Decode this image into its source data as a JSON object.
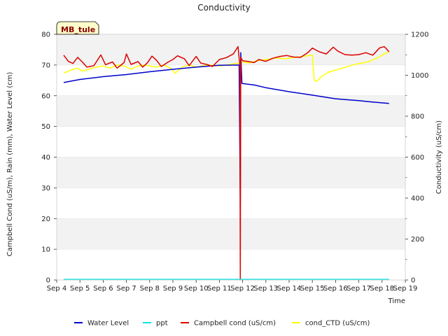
{
  "chart_data": {
    "type": "line",
    "title": "Conductivity",
    "station_label": "MB_tule",
    "xlabel": "Time",
    "ylabel_left": "Campbell Cond (uS/m), Rain (mm), Water Level (cm)",
    "ylabel_right": "Conductivity (uS/cm)",
    "x_ticks": [
      "Sep 4",
      "Sep 5",
      "Sep 6",
      "Sep 7",
      "Sep 8",
      "Sep 9",
      "Sep 10",
      "Sep 11",
      "Sep 12",
      "Sep 13",
      "Sep 14",
      "Sep 15",
      "Sep 16",
      "Sep 17",
      "Sep 18",
      "Sep 19"
    ],
    "xlim": [
      4,
      19
    ],
    "ylim_left": [
      0,
      80
    ],
    "ylim_right": [
      0,
      1200
    ],
    "y_ticks_left": [
      "0",
      "10",
      "20",
      "30",
      "40",
      "50",
      "60",
      "70",
      "80"
    ],
    "y_ticks_right": [
      "0",
      "200",
      "400",
      "600",
      "800",
      "1000",
      "1200"
    ],
    "grid": "horizontal bands",
    "legend_position": "bottom",
    "series": [
      {
        "name": "Water Level",
        "color": "#0000cc",
        "axis": "left",
        "points": [
          [
            4.3,
            64.3
          ],
          [
            5.0,
            65.3
          ],
          [
            6.0,
            66.2
          ],
          [
            7.0,
            66.9
          ],
          [
            8.0,
            67.8
          ],
          [
            9.0,
            68.6
          ],
          [
            10.0,
            69.3
          ],
          [
            11.0,
            69.9
          ],
          [
            11.85,
            70.0
          ],
          [
            11.9,
            25.0
          ],
          [
            11.92,
            74.0
          ],
          [
            11.97,
            64.0
          ],
          [
            12.5,
            63.5
          ],
          [
            13.0,
            62.6
          ],
          [
            14.0,
            61.3
          ],
          [
            15.0,
            60.2
          ],
          [
            16.0,
            59.0
          ],
          [
            17.0,
            58.4
          ],
          [
            17.5,
            58.0
          ],
          [
            18.3,
            57.5
          ]
        ]
      },
      {
        "name": "ppt",
        "color": "#00e5e5",
        "axis": "left",
        "points": [
          [
            4.3,
            0.2
          ],
          [
            18.3,
            0.2
          ]
        ]
      },
      {
        "name": "Campbell cond (uS/cm)",
        "color": "#dd0000",
        "axis": "left",
        "points": [
          [
            4.3,
            73.2
          ],
          [
            4.5,
            71.2
          ],
          [
            4.7,
            70.5
          ],
          [
            4.9,
            72.5
          ],
          [
            5.1,
            71.0
          ],
          [
            5.3,
            69.3
          ],
          [
            5.6,
            69.8
          ],
          [
            5.9,
            73.3
          ],
          [
            6.1,
            70.1
          ],
          [
            6.4,
            71.0
          ],
          [
            6.6,
            69.0
          ],
          [
            6.9,
            70.8
          ],
          [
            7.0,
            73.6
          ],
          [
            7.2,
            70.2
          ],
          [
            7.5,
            71.1
          ],
          [
            7.7,
            69.3
          ],
          [
            7.9,
            70.7
          ],
          [
            8.1,
            72.9
          ],
          [
            8.3,
            71.5
          ],
          [
            8.5,
            69.5
          ],
          [
            8.8,
            71.0
          ],
          [
            9.0,
            71.8
          ],
          [
            9.2,
            73.0
          ],
          [
            9.5,
            72.0
          ],
          [
            9.7,
            69.8
          ],
          [
            10.0,
            72.8
          ],
          [
            10.2,
            70.6
          ],
          [
            10.5,
            70.1
          ],
          [
            10.7,
            69.5
          ],
          [
            11.0,
            71.8
          ],
          [
            11.3,
            72.4
          ],
          [
            11.6,
            73.6
          ],
          [
            11.8,
            76.0
          ],
          [
            11.88,
            70.0
          ],
          [
            11.9,
            0.0
          ],
          [
            11.92,
            72.5
          ],
          [
            12.0,
            71.4
          ],
          [
            12.2,
            71.2
          ],
          [
            12.5,
            70.8
          ],
          [
            12.7,
            71.8
          ],
          [
            13.0,
            71.2
          ],
          [
            13.3,
            72.2
          ],
          [
            13.6,
            72.8
          ],
          [
            13.9,
            73.1
          ],
          [
            14.2,
            72.6
          ],
          [
            14.5,
            72.5
          ],
          [
            14.8,
            74.0
          ],
          [
            15.0,
            75.5
          ],
          [
            15.3,
            74.3
          ],
          [
            15.6,
            73.6
          ],
          [
            15.9,
            75.8
          ],
          [
            16.1,
            74.5
          ],
          [
            16.4,
            73.4
          ],
          [
            16.7,
            73.2
          ],
          [
            17.0,
            73.4
          ],
          [
            17.3,
            74.0
          ],
          [
            17.6,
            73.2
          ],
          [
            17.9,
            75.6
          ],
          [
            18.1,
            76.0
          ],
          [
            18.3,
            74.3
          ]
        ]
      },
      {
        "name": "cond_CTD (uS/cm)",
        "color": "#ffff00",
        "axis": "right",
        "points": [
          [
            4.3,
            1010
          ],
          [
            4.6,
            1025
          ],
          [
            4.9,
            1035
          ],
          [
            5.1,
            1020
          ],
          [
            5.4,
            1030
          ],
          [
            5.7,
            1040
          ],
          [
            6.0,
            1045
          ],
          [
            6.3,
            1035
          ],
          [
            6.6,
            1050
          ],
          [
            6.9,
            1045
          ],
          [
            7.2,
            1030
          ],
          [
            7.5,
            1045
          ],
          [
            7.8,
            1050
          ],
          [
            8.0,
            1045
          ],
          [
            8.3,
            1040
          ],
          [
            8.6,
            1050
          ],
          [
            8.9,
            1035
          ],
          [
            9.1,
            1010
          ],
          [
            9.4,
            1040
          ],
          [
            9.7,
            1050
          ],
          [
            10.0,
            1040
          ],
          [
            10.3,
            1045
          ],
          [
            10.6,
            1050
          ],
          [
            11.0,
            1045
          ],
          [
            11.3,
            1050
          ],
          [
            11.6,
            1055
          ],
          [
            11.85,
            1060
          ],
          [
            12.0,
            1065
          ],
          [
            12.3,
            1060
          ],
          [
            12.6,
            1070
          ],
          [
            12.9,
            1075
          ],
          [
            13.2,
            1080
          ],
          [
            13.5,
            1085
          ],
          [
            13.8,
            1080
          ],
          [
            14.1,
            1085
          ],
          [
            14.4,
            1090
          ],
          [
            14.8,
            1095
          ],
          [
            15.0,
            1100
          ],
          [
            15.08,
            975
          ],
          [
            15.2,
            970
          ],
          [
            15.4,
            995
          ],
          [
            15.7,
            1015
          ],
          [
            16.0,
            1025
          ],
          [
            16.3,
            1035
          ],
          [
            16.6,
            1045
          ],
          [
            16.9,
            1055
          ],
          [
            17.2,
            1060
          ],
          [
            17.5,
            1070
          ],
          [
            17.8,
            1085
          ],
          [
            18.1,
            1105
          ],
          [
            18.3,
            1115
          ]
        ]
      }
    ]
  }
}
